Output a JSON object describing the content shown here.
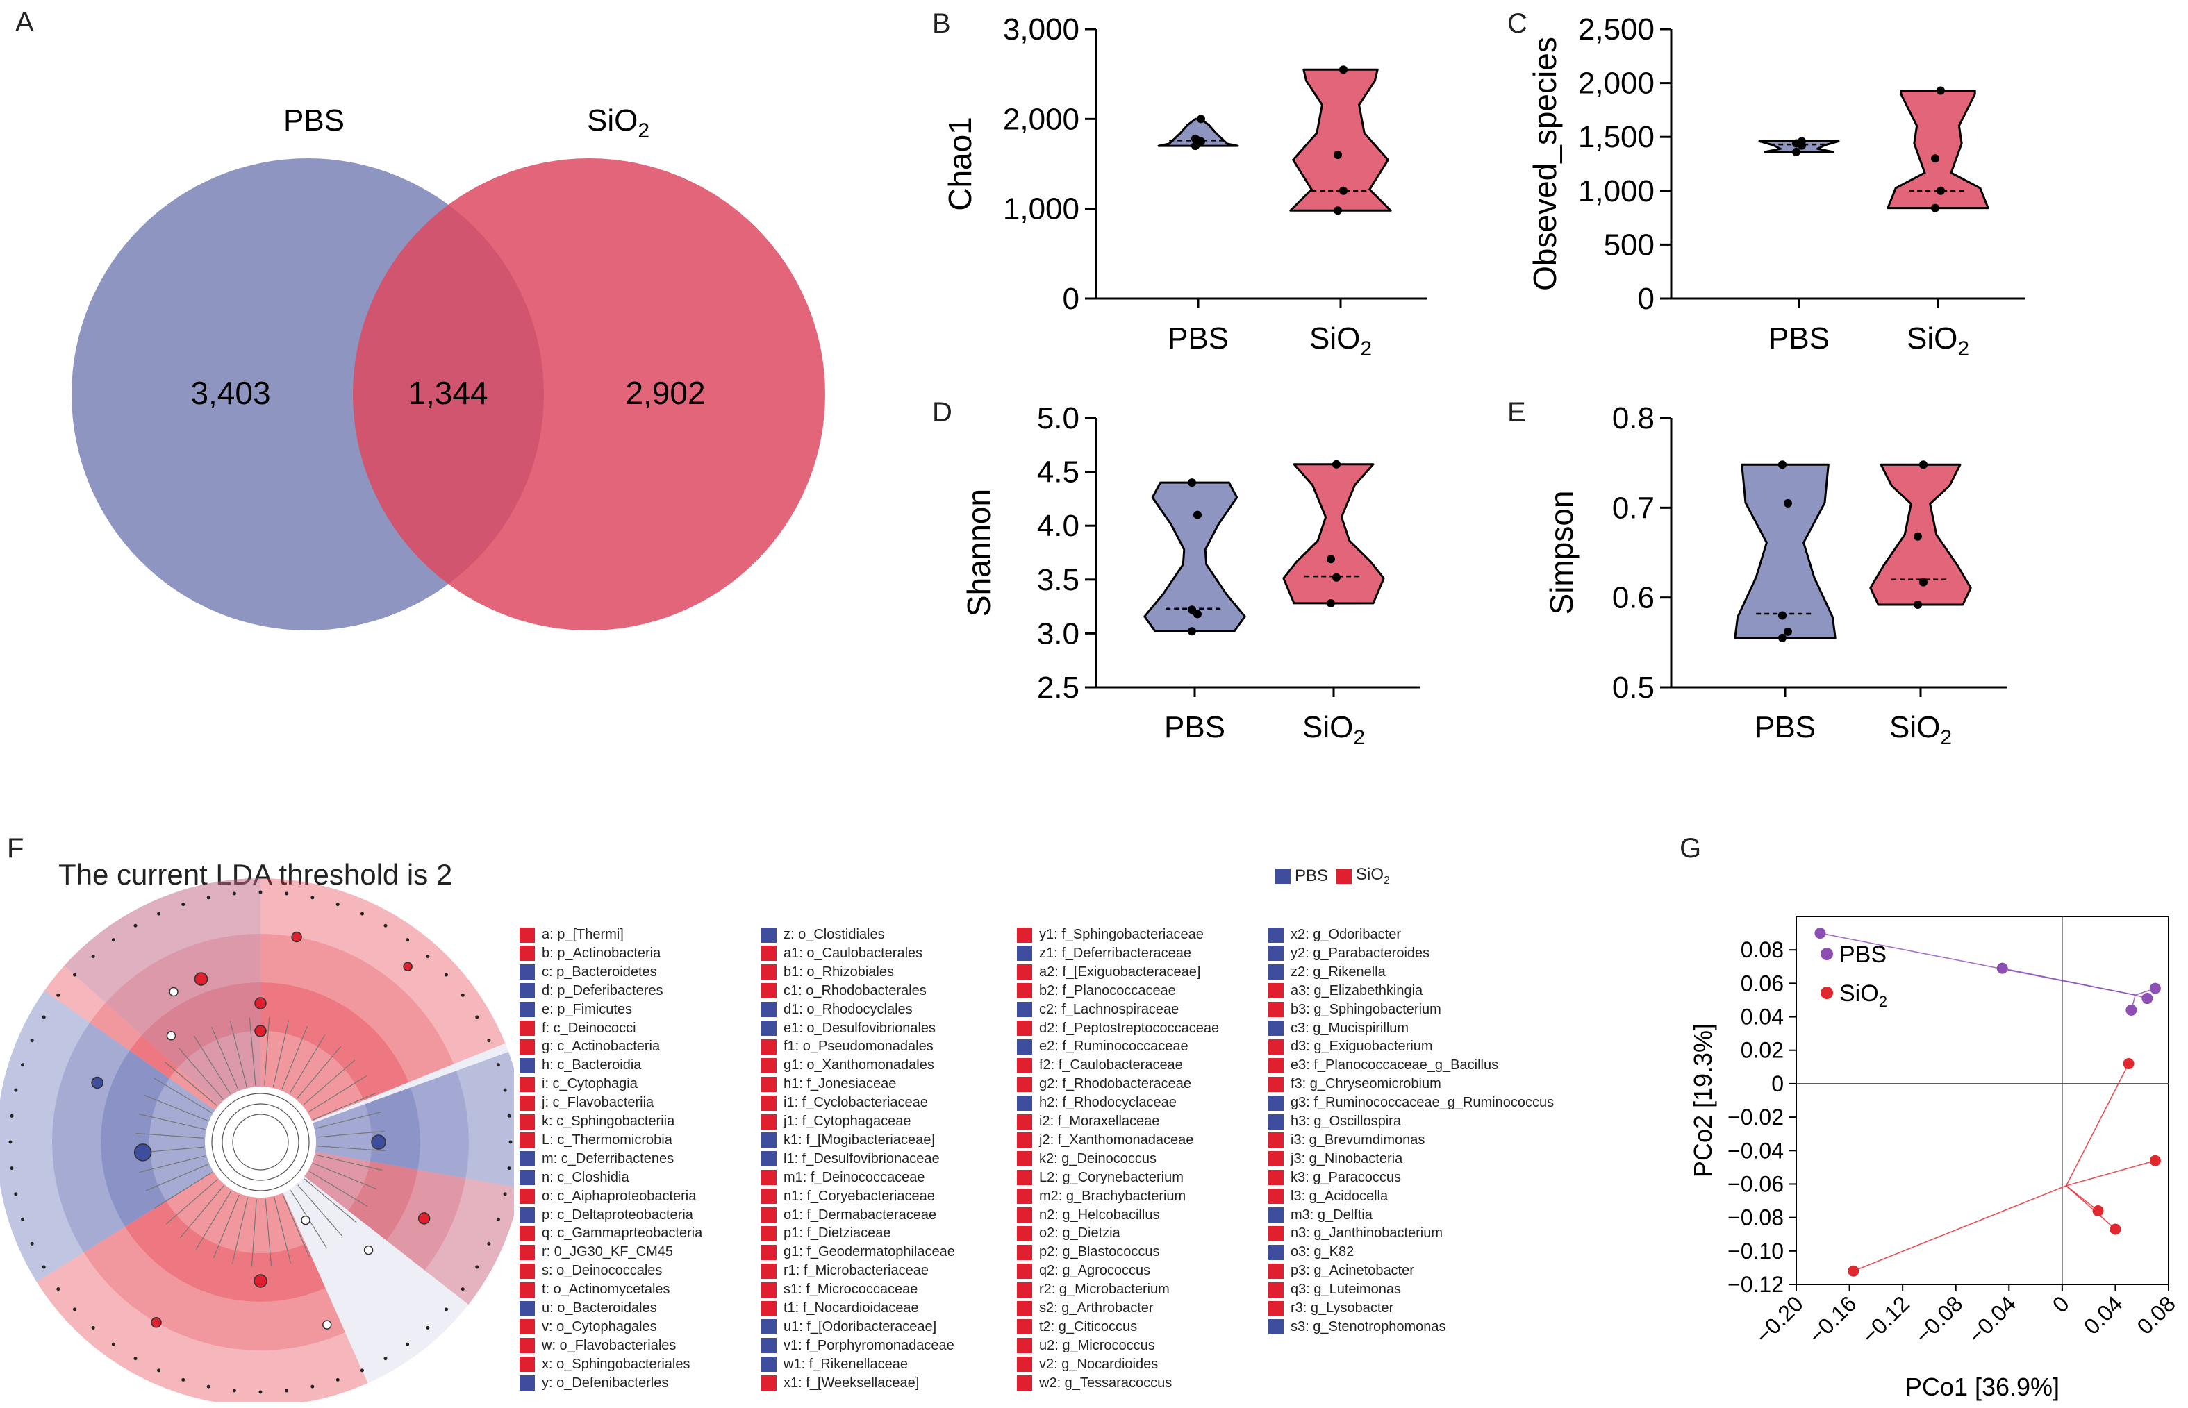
{
  "panels": {
    "A": "A",
    "B": "B",
    "C": "C",
    "D": "D",
    "E": "E",
    "F": "F",
    "G": "G"
  },
  "colors": {
    "pbs": "#7B83B6",
    "sio2": "#DE4A62",
    "pbs_dark": "#3F4D9E",
    "sio2_dark": "#E0202E",
    "pco_pbs": "#8E4FB5",
    "pco_sio2": "#E0282E"
  },
  "chart_data": [
    {
      "type": "venn",
      "sets": [
        "PBS",
        "SiO2"
      ],
      "set_label_sio2_base": "SiO",
      "set_label_sio2_sub": "2",
      "values": {
        "PBS_only": "3,403",
        "both": "1,344",
        "SiO2_only": "2,902"
      }
    },
    {
      "type": "violin",
      "panel": "B",
      "ylabel": "Chao1",
      "ylim": [
        0,
        3000
      ],
      "yticks": [
        "0",
        "1,000",
        "2,000",
        "3,000"
      ],
      "categories": [
        "PBS",
        "SiO2"
      ],
      "points": {
        "PBS": [
          1700,
          1750,
          1780,
          2000
        ],
        "SiO2": [
          980,
          1200,
          1600,
          2550
        ]
      },
      "median": {
        "PBS": 1760,
        "SiO2": 1200
      }
    },
    {
      "type": "violin",
      "panel": "C",
      "ylabel": "Obseved_species",
      "ylim": [
        0,
        2500
      ],
      "yticks": [
        "0",
        "500",
        "1,000",
        "1,500",
        "2,000",
        "2,500"
      ],
      "categories": [
        "PBS",
        "SiO2"
      ],
      "points": {
        "PBS": [
          1360,
          1420,
          1440,
          1460
        ],
        "SiO2": [
          840,
          1000,
          1300,
          1930
        ]
      },
      "median": {
        "PBS": 1430,
        "SiO2": 1000
      }
    },
    {
      "type": "violin",
      "panel": "D",
      "ylabel": "Shannon",
      "ylim": [
        2.5,
        5.0
      ],
      "yticks": [
        "2.5",
        "3.0",
        "3.5",
        "4.0",
        "4.5",
        "5.0"
      ],
      "categories": [
        "PBS",
        "SiO2"
      ],
      "points": {
        "PBS": [
          3.02,
          3.18,
          3.22,
          4.1,
          4.4
        ],
        "SiO2": [
          3.28,
          3.52,
          3.69,
          4.57
        ]
      },
      "median": {
        "PBS": 3.23,
        "SiO2": 3.53
      }
    },
    {
      "type": "violin",
      "panel": "E",
      "ylabel": "Simpson",
      "ylim": [
        0.5,
        0.8
      ],
      "yticks": [
        "0.5",
        "0.6",
        "0.7",
        "0.8"
      ],
      "categories": [
        "PBS",
        "SiO2"
      ],
      "points": {
        "PBS": [
          0.555,
          0.562,
          0.58,
          0.705,
          0.748
        ],
        "SiO2": [
          0.592,
          0.617,
          0.668,
          0.748
        ]
      },
      "median": {
        "PBS": 0.582,
        "SiO2": 0.62
      }
    },
    {
      "type": "scatter",
      "panel": "G",
      "xlabel": "PCo1 [36.9%]",
      "ylabel": "PCo2 [19.3%]",
      "xlim": [
        -0.2,
        0.08
      ],
      "ylim": [
        -0.12,
        0.1
      ],
      "xticks": [
        "−0.20",
        "−0.16",
        "−0.12",
        "−0.08",
        "−0.04",
        "0",
        "0.04",
        "0.08"
      ],
      "yticks": [
        "0.08",
        "0.06",
        "0.04",
        "0.02",
        "0",
        "−0.02",
        "−0.04",
        "−0.06",
        "−0.08",
        "−0.10",
        "−0.12"
      ],
      "series": [
        {
          "name": "PBS",
          "centroid": [
            0.055,
            0.053
          ],
          "points": [
            [
              -0.182,
              0.09
            ],
            [
              -0.045,
              0.069
            ],
            [
              0.07,
              0.057
            ],
            [
              0.064,
              0.051
            ],
            [
              0.052,
              0.044
            ]
          ]
        },
        {
          "name_base": "SiO",
          "name_sub": "2",
          "name": "SiO2",
          "centroid": [
            0.003,
            -0.061
          ],
          "points": [
            [
              -0.157,
              -0.112
            ],
            [
              0.05,
              0.012
            ],
            [
              0.07,
              -0.046
            ],
            [
              0.027,
              -0.076
            ],
            [
              0.04,
              -0.087
            ]
          ]
        }
      ]
    }
  ],
  "lda": {
    "title": "The current LDA threshold is 2",
    "key_pbs": "PBS",
    "key_sio2_base": "SiO",
    "key_sio2_sub": "2",
    "columns": [
      [
        {
          "t": "a: p_[Thermi]",
          "c": "r"
        },
        {
          "t": "b: p_Actinobacteria",
          "c": "r"
        },
        {
          "t": "c: p_Bacteroidetes",
          "c": "b"
        },
        {
          "t": "d: p_Deferibacteres",
          "c": "b"
        },
        {
          "t": "e: p_Fimicutes",
          "c": "b"
        },
        {
          "t": "f: c_Deinococci",
          "c": "r"
        },
        {
          "t": "g: c_Actinobacteria",
          "c": "r"
        },
        {
          "t": "h: c_Bacteroidia",
          "c": "b"
        },
        {
          "t": "i: c_Cytophagia",
          "c": "r"
        },
        {
          "t": "j: c_Flavobacteriia",
          "c": "r"
        },
        {
          "t": "k: c_Sphingobacteriia",
          "c": "r"
        },
        {
          "t": "L: c_Thermomicrobia",
          "c": "r"
        },
        {
          "t": "m: c_Deferribactenes",
          "c": "b"
        },
        {
          "t": "n: c_Closhidia",
          "c": "b"
        },
        {
          "t": "o: c_Aiphaproteobacteria",
          "c": "r"
        },
        {
          "t": "p: c_Deltaproteobacteria",
          "c": "b"
        },
        {
          "t": "q: c_Gammaprteobacteria",
          "c": "r"
        },
        {
          "t": "r: 0_JG30_KF_CM45",
          "c": "r"
        },
        {
          "t": "s: o_Deinococcales",
          "c": "r"
        },
        {
          "t": "t: o_Actinomycetales",
          "c": "r"
        },
        {
          "t": "u: o_Bacteroidales",
          "c": "b"
        },
        {
          "t": "v: o_Cytophagales",
          "c": "r"
        },
        {
          "t": "w: o_Flavobacteriales",
          "c": "r"
        },
        {
          "t": "x: o_Sphingobacteriales",
          "c": "r"
        },
        {
          "t": "y: o_Defenibacterles",
          "c": "b"
        }
      ],
      [
        {
          "t": "z: o_Clostidiales",
          "c": "b"
        },
        {
          "t": "a1: o_Caulobacterales",
          "c": "r"
        },
        {
          "t": "b1: o_Rhizobiales",
          "c": "r"
        },
        {
          "t": "c1: o_Rhodobacterales",
          "c": "r"
        },
        {
          "t": "d1: o_Rhodocyclales",
          "c": "b"
        },
        {
          "t": "e1: o_Desulfovibrionales",
          "c": "b"
        },
        {
          "t": "f1: o_Pseudomonadales",
          "c": "r"
        },
        {
          "t": "g1: o_Xanthomonadales",
          "c": "r"
        },
        {
          "t": "h1: f_Jonesiaceae",
          "c": "r"
        },
        {
          "t": "i1: f_Cyclobacteriaceae",
          "c": "r"
        },
        {
          "t": "j1: f_Cytophagaceae",
          "c": "r"
        },
        {
          "t": "k1: f_[Mogibacteriaceae]",
          "c": "b"
        },
        {
          "t": "l1: f_Desulfovibrionaceae",
          "c": "b"
        },
        {
          "t": "m1: f_Deinococcaceae",
          "c": "r"
        },
        {
          "t": "n1: f_Coryebacteriaceae",
          "c": "r"
        },
        {
          "t": "o1: f_Dermabacteraceae",
          "c": "r"
        },
        {
          "t": "p1: f_Dietziaceae",
          "c": "r"
        },
        {
          "t": "g1: f_Geodermatophilaceae",
          "c": "r"
        },
        {
          "t": "r1: f_Microbacteriaceae",
          "c": "r"
        },
        {
          "t": "s1: f_Micrococcaceae",
          "c": "r"
        },
        {
          "t": "t1: f_Nocardioidaceae",
          "c": "r"
        },
        {
          "t": "u1: f_[Odoribacteraceae]",
          "c": "b"
        },
        {
          "t": "v1: f_Porphyromonadaceae",
          "c": "b"
        },
        {
          "t": "w1: f_Rikenellaceae",
          "c": "b"
        },
        {
          "t": "x1: f_[Weeksellaceae]",
          "c": "r"
        }
      ],
      [
        {
          "t": "y1: f_Sphingobacteriaceae",
          "c": "r"
        },
        {
          "t": "z1: f_Deferribacteraceae",
          "c": "b"
        },
        {
          "t": "a2: f_[Exiguobacteraceae]",
          "c": "r"
        },
        {
          "t": "b2: f_Planococcaceae",
          "c": "r"
        },
        {
          "t": "c2: f_Lachnospiraceae",
          "c": "b"
        },
        {
          "t": "d2: f_Peptostreptococcaceae",
          "c": "r"
        },
        {
          "t": "e2: f_Ruminococcaceae",
          "c": "b"
        },
        {
          "t": "f2: f_Caulobacteraceae",
          "c": "r"
        },
        {
          "t": "g2: f_Rhodobacteraceae",
          "c": "r"
        },
        {
          "t": "h2: f_Rhodocyclaceae",
          "c": "b"
        },
        {
          "t": "i2: f_Moraxellaceae",
          "c": "r"
        },
        {
          "t": "j2: f_Xanthomonadaceae",
          "c": "r"
        },
        {
          "t": "k2: g_Deinococcus",
          "c": "r"
        },
        {
          "t": "L2: g_Corynebacterium",
          "c": "r"
        },
        {
          "t": "m2: g_Brachybacterium",
          "c": "r"
        },
        {
          "t": "n2: g_Helcobacillus",
          "c": "r"
        },
        {
          "t": "o2: g_Dietzia",
          "c": "r"
        },
        {
          "t": "p2: g_Blastococcus",
          "c": "r"
        },
        {
          "t": "q2: g_Agrococcus",
          "c": "r"
        },
        {
          "t": "r2: g_Microbacterium",
          "c": "r"
        },
        {
          "t": "s2: g_Arthrobacter",
          "c": "r"
        },
        {
          "t": "t2: g_Citicoccus",
          "c": "r"
        },
        {
          "t": "u2: g_Micrococcus",
          "c": "r"
        },
        {
          "t": "v2: g_Nocardioides",
          "c": "r"
        },
        {
          "t": "w2: g_Tessaracoccus",
          "c": "r"
        }
      ],
      [
        {
          "t": "x2: g_Odoribacter",
          "c": "b"
        },
        {
          "t": "y2: g_Parabacteroides",
          "c": "b"
        },
        {
          "t": "z2: g_Rikenella",
          "c": "b"
        },
        {
          "t": "a3: g_Elizabethkingia",
          "c": "r"
        },
        {
          "t": "b3: g_Sphingobacterium",
          "c": "r"
        },
        {
          "t": "c3: g_Mucispirillum",
          "c": "b"
        },
        {
          "t": "d3: g_Exiguobacterium",
          "c": "r"
        },
        {
          "t": "e3: f_Planococcaceae_g_Bacillus",
          "c": "r"
        },
        {
          "t": "f3: g_Chryseomicrobium",
          "c": "r"
        },
        {
          "t": "g3: f_Ruminococcaceae_g_Ruminococcus",
          "c": "b"
        },
        {
          "t": "h3: g_Oscillospira",
          "c": "b"
        },
        {
          "t": "i3: g_Brevumdimonas",
          "c": "r"
        },
        {
          "t": "j3: g_Ninobacteria",
          "c": "r"
        },
        {
          "t": "k3: g_Paracoccus",
          "c": "r"
        },
        {
          "t": "l3: g_Acidocella",
          "c": "r"
        },
        {
          "t": "m3: g_Delftia",
          "c": "b"
        },
        {
          "t": "n3: g_Janthinobacterium",
          "c": "r"
        },
        {
          "t": "o3: g_K82",
          "c": "b"
        },
        {
          "t": "p3: g_Acinetobacter",
          "c": "r"
        },
        {
          "t": "q3: g_Luteimonas",
          "c": "r"
        },
        {
          "t": "r3: g_Lysobacter",
          "c": "r"
        },
        {
          "t": "s3: g_Stenotrophomonas",
          "c": "b"
        }
      ]
    ]
  }
}
